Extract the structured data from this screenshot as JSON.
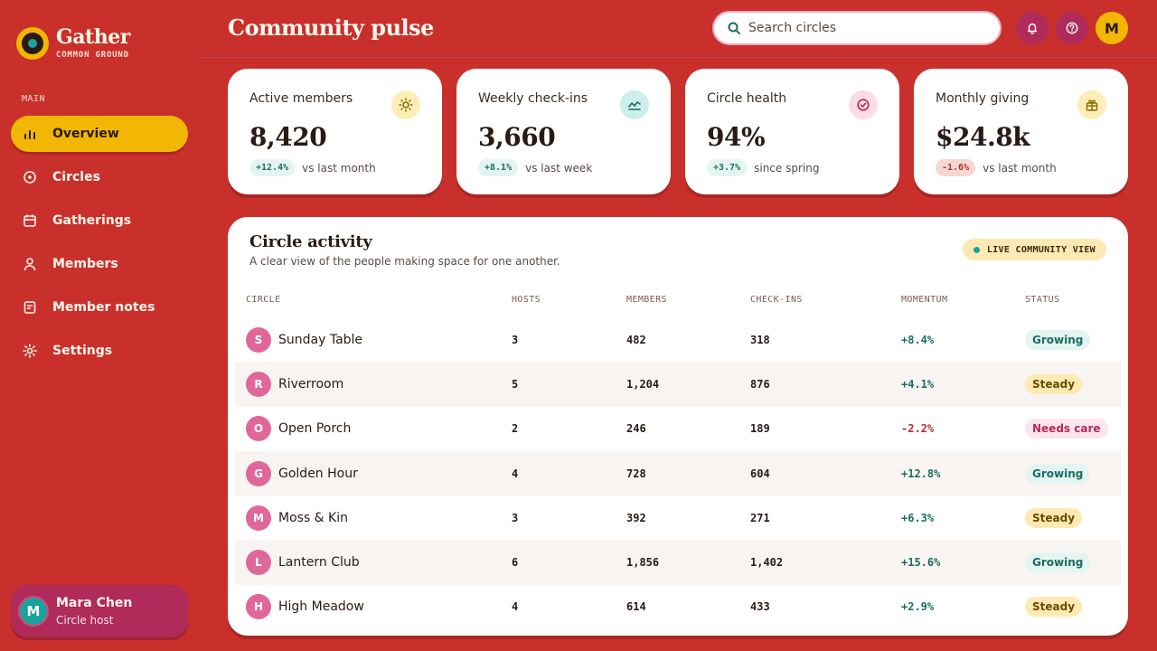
{
  "brand": {
    "name": "Gather",
    "tagline": "COMMON GROUND"
  },
  "nav": {
    "section": "MAIN",
    "items": [
      {
        "label": "Overview",
        "icon": "bar-chart-icon",
        "active": true
      },
      {
        "label": "Circles",
        "icon": "circle-dot-icon"
      },
      {
        "label": "Gatherings",
        "icon": "calendar-icon"
      },
      {
        "label": "Members",
        "icon": "person-icon"
      },
      {
        "label": "Member notes",
        "icon": "note-icon"
      },
      {
        "label": "Settings",
        "icon": "gear-icon"
      }
    ]
  },
  "user": {
    "initial": "M",
    "name": "Mara Chen",
    "role": "Circle host"
  },
  "header": {
    "title": "Community pulse",
    "search_placeholder": "Search circles",
    "avatar_initial": "M"
  },
  "stats": [
    {
      "label": "Active members",
      "value": "8,420",
      "delta": "+12.4%",
      "trend": "up",
      "compare": "vs last month",
      "icon": "sun-icon",
      "icon_bg": "#fdeeb8",
      "icon_color": "#8a6a00"
    },
    {
      "label": "Weekly check-ins",
      "value": "3,660",
      "delta": "+8.1%",
      "trend": "up",
      "compare": "vs last week",
      "icon": "trend-line-icon",
      "icon_bg": "#cdeeea",
      "icon_color": "#1b6d64"
    },
    {
      "label": "Circle health",
      "value": "94%",
      "delta": "+3.7%",
      "trend": "up",
      "compare": "since spring",
      "icon": "check-circle-icon",
      "icon_bg": "#fbdbe6",
      "icon_color": "#b02a5a"
    },
    {
      "label": "Monthly giving",
      "value": "$24.8k",
      "delta": "-1.6%",
      "trend": "down",
      "compare": "vs last month",
      "icon": "gift-icon",
      "icon_bg": "#fdeeb8",
      "icon_color": "#8a6a00"
    }
  ],
  "activity": {
    "title": "Circle activity",
    "subtitle": "A clear view of the people making space for one another.",
    "badge": "LIVE COMMUNITY VIEW",
    "columns": [
      "CIRCLE",
      "HOSTS",
      "MEMBERS",
      "CHECK-INS",
      "MOMENTUM",
      "STATUS"
    ],
    "rows": [
      {
        "initial": "S",
        "name": "Sunday Table",
        "hosts": "3",
        "members": "482",
        "checkins": "318",
        "momentum": "+8.4%",
        "status": "Growing"
      },
      {
        "initial": "R",
        "name": "Riverroom",
        "hosts": "5",
        "members": "1,204",
        "checkins": "876",
        "momentum": "+4.1%",
        "status": "Steady"
      },
      {
        "initial": "O",
        "name": "Open Porch",
        "hosts": "2",
        "members": "246",
        "checkins": "189",
        "momentum": "-2.2%",
        "status": "Needs care"
      },
      {
        "initial": "G",
        "name": "Golden Hour",
        "hosts": "4",
        "members": "728",
        "checkins": "604",
        "momentum": "+12.8%",
        "status": "Growing"
      },
      {
        "initial": "M",
        "name": "Moss & Kin",
        "hosts": "3",
        "members": "392",
        "checkins": "271",
        "momentum": "+6.3%",
        "status": "Steady"
      },
      {
        "initial": "L",
        "name": "Lantern Club",
        "hosts": "6",
        "members": "1,856",
        "checkins": "1,402",
        "momentum": "+15.6%",
        "status": "Growing"
      },
      {
        "initial": "H",
        "name": "High Meadow",
        "hosts": "4",
        "members": "614",
        "checkins": "433",
        "momentum": "+2.9%",
        "status": "Steady"
      }
    ]
  },
  "colors": {
    "background": "#c9302c",
    "accent_yellow": "#f2b705",
    "accent_magenta": "#b02a5a",
    "teal": "#1aa39a",
    "positive": "#1b6d64",
    "negative": "#b0302a"
  }
}
